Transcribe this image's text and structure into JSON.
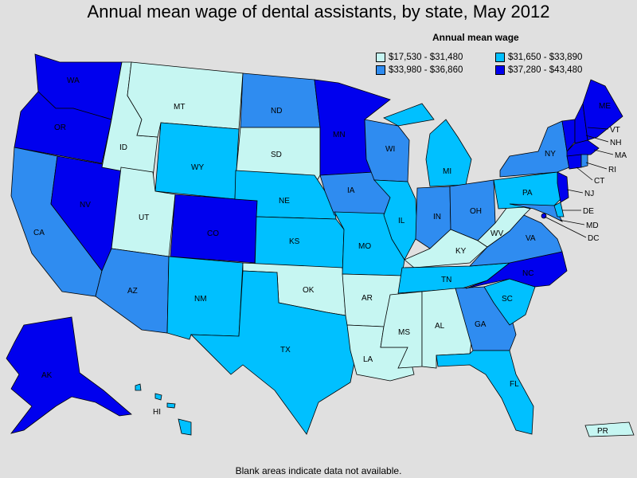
{
  "title": "Annual mean wage of dental assistants, by state, May 2012",
  "legend": {
    "title": "Annual mean wage",
    "items": [
      {
        "label": "$17,530 - $31,480",
        "color": "#c6f6f2"
      },
      {
        "label": "$31,650 - $33,890",
        "color": "#00c0ff"
      },
      {
        "label": "$33,980 - $36,860",
        "color": "#2f8cf0"
      },
      {
        "label": "$37,280 - $43,480",
        "color": "#0000ee"
      }
    ]
  },
  "footnote": "Blank areas indicate data not available.",
  "states": {
    "WA": {
      "label": "WA",
      "tier": 3
    },
    "OR": {
      "label": "OR",
      "tier": 3
    },
    "CA": {
      "label": "CA",
      "tier": 2
    },
    "NV": {
      "label": "NV",
      "tier": 3
    },
    "ID": {
      "label": "ID",
      "tier": 0
    },
    "MT": {
      "label": "MT",
      "tier": 0
    },
    "WY": {
      "label": "WY",
      "tier": 1
    },
    "UT": {
      "label": "UT",
      "tier": 0
    },
    "AZ": {
      "label": "AZ",
      "tier": 2
    },
    "CO": {
      "label": "CO",
      "tier": 3
    },
    "NM": {
      "label": "NM",
      "tier": 1
    },
    "ND": {
      "label": "ND",
      "tier": 2
    },
    "SD": {
      "label": "SD",
      "tier": 0
    },
    "NE": {
      "label": "NE",
      "tier": 1
    },
    "KS": {
      "label": "KS",
      "tier": 1
    },
    "OK": {
      "label": "OK",
      "tier": 0
    },
    "TX": {
      "label": "TX",
      "tier": 1
    },
    "MN": {
      "label": "MN",
      "tier": 3
    },
    "IA": {
      "label": "IA",
      "tier": 2
    },
    "MO": {
      "label": "MO",
      "tier": 1
    },
    "AR": {
      "label": "AR",
      "tier": 0
    },
    "LA": {
      "label": "LA",
      "tier": 0
    },
    "WI": {
      "label": "WI",
      "tier": 2
    },
    "IL": {
      "label": "IL",
      "tier": 1
    },
    "MI": {
      "label": "MI",
      "tier": 1
    },
    "IN": {
      "label": "IN",
      "tier": 2
    },
    "OH": {
      "label": "OH",
      "tier": 2
    },
    "KY": {
      "label": "KY",
      "tier": 0
    },
    "TN": {
      "label": "TN",
      "tier": 1
    },
    "MS": {
      "label": "MS",
      "tier": 0
    },
    "AL": {
      "label": "AL",
      "tier": 0
    },
    "GA": {
      "label": "GA",
      "tier": 2
    },
    "FL": {
      "label": "FL",
      "tier": 1
    },
    "SC": {
      "label": "SC",
      "tier": 1
    },
    "NC": {
      "label": "NC",
      "tier": 3
    },
    "VA": {
      "label": "VA",
      "tier": 2
    },
    "WV": {
      "label": "WV",
      "tier": 0
    },
    "PA": {
      "label": "PA",
      "tier": 1
    },
    "NY": {
      "label": "NY",
      "tier": 2
    },
    "ME": {
      "label": "ME",
      "tier": 3
    },
    "VT": {
      "label": "VT",
      "tier": 3
    },
    "NH": {
      "label": "NH",
      "tier": 3
    },
    "MA": {
      "label": "MA",
      "tier": 3
    },
    "CT": {
      "label": "CT",
      "tier": 3
    },
    "RI": {
      "label": "RI",
      "tier": 2
    },
    "NJ": {
      "label": "NJ",
      "tier": 3
    },
    "DE": {
      "label": "DE",
      "tier": 1
    },
    "MD": {
      "label": "MD",
      "tier": 2
    },
    "DC": {
      "label": "DC",
      "tier": 3
    },
    "AK": {
      "label": "AK",
      "tier": 3
    },
    "HI": {
      "label": "HI",
      "tier": 1
    },
    "PR": {
      "label": "PR",
      "tier": 0
    }
  }
}
